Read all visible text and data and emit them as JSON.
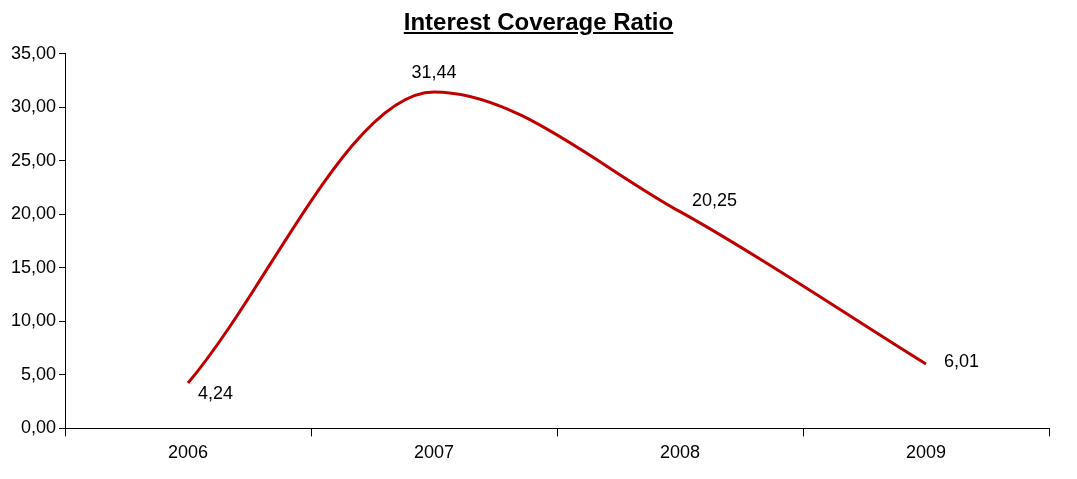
{
  "chart_data": {
    "type": "line",
    "title": "Interest Coverage Ratio",
    "categories": [
      "2006",
      "2007",
      "2008",
      "2009"
    ],
    "series": [
      {
        "color": "#c00000",
        "values": [
          4.24,
          31.44,
          20.25,
          6.01
        ],
        "value_labels": [
          "4,24",
          "31,44",
          "20,25",
          "6,01"
        ]
      }
    ],
    "ylim": [
      0,
      35
    ],
    "yticks": [
      {
        "value": 0,
        "label": "0,00"
      },
      {
        "value": 5,
        "label": "5,00"
      },
      {
        "value": 10,
        "label": "10,00"
      },
      {
        "value": 15,
        "label": "15,00"
      },
      {
        "value": 20,
        "label": "20,00"
      },
      {
        "value": 25,
        "label": "25,00"
      },
      {
        "value": 30,
        "label": "30,00"
      },
      {
        "value": 35,
        "label": "35,00"
      }
    ],
    "grid": false,
    "legend": false,
    "marker": "none",
    "line_style": "solid"
  }
}
